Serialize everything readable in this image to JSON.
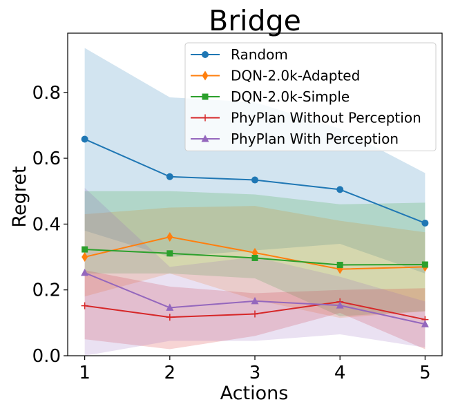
{
  "chart_data": {
    "type": "line",
    "title": "Bridge",
    "xlabel": "Actions",
    "ylabel": "Regret",
    "x": [
      1,
      2,
      3,
      4,
      5
    ],
    "xlim": [
      0.8,
      5.2
    ],
    "ylim": [
      0.0,
      0.98
    ],
    "xticks": [
      "1",
      "2",
      "3",
      "4",
      "5"
    ],
    "yticks": [
      "0.0",
      "0.2",
      "0.4",
      "0.6",
      "0.8"
    ],
    "grid": false,
    "legend_position": "top-right",
    "series": [
      {
        "name": "Random",
        "color": "#1f77b4",
        "marker": "circle",
        "values": [
          0.658,
          0.544,
          0.534,
          0.505,
          0.403
        ],
        "lower": [
          0.38,
          0.3,
          0.32,
          0.34,
          0.25
        ],
        "upper": [
          0.935,
          0.785,
          0.77,
          0.69,
          0.555
        ]
      },
      {
        "name": "DQN-2.0k-Adapted",
        "color": "#ff7f0e",
        "marker": "diamond",
        "values": [
          0.3,
          0.361,
          0.313,
          0.263,
          0.27
        ],
        "lower": [
          0.18,
          0.25,
          0.17,
          0.115,
          0.135
        ],
        "upper": [
          0.43,
          0.45,
          0.455,
          0.41,
          0.375
        ]
      },
      {
        "name": "DQN-2.0k-Simple",
        "color": "#2ca02c",
        "marker": "square",
        "values": [
          0.323,
          0.311,
          0.297,
          0.276,
          0.277
        ],
        "lower": [
          0.25,
          0.25,
          0.235,
          0.12,
          0.135
        ],
        "upper": [
          0.5,
          0.5,
          0.49,
          0.46,
          0.465
        ]
      },
      {
        "name": "PhyPlan Without Perception",
        "color": "#d62728",
        "marker": "plus",
        "values": [
          0.152,
          0.117,
          0.127,
          0.164,
          0.11
        ],
        "lower": [
          0.05,
          0.02,
          0.06,
          0.13,
          0.02
        ],
        "upper": [
          0.26,
          0.21,
          0.19,
          0.2,
          0.205
        ]
      },
      {
        "name": "PhyPlan With Perception",
        "color": "#9467bd",
        "marker": "triangle",
        "values": [
          0.252,
          0.146,
          0.166,
          0.153,
          0.096
        ],
        "lower": [
          0.0,
          0.045,
          0.045,
          0.065,
          0.025
        ],
        "upper": [
          0.51,
          0.27,
          0.3,
          0.24,
          0.165
        ]
      }
    ]
  }
}
